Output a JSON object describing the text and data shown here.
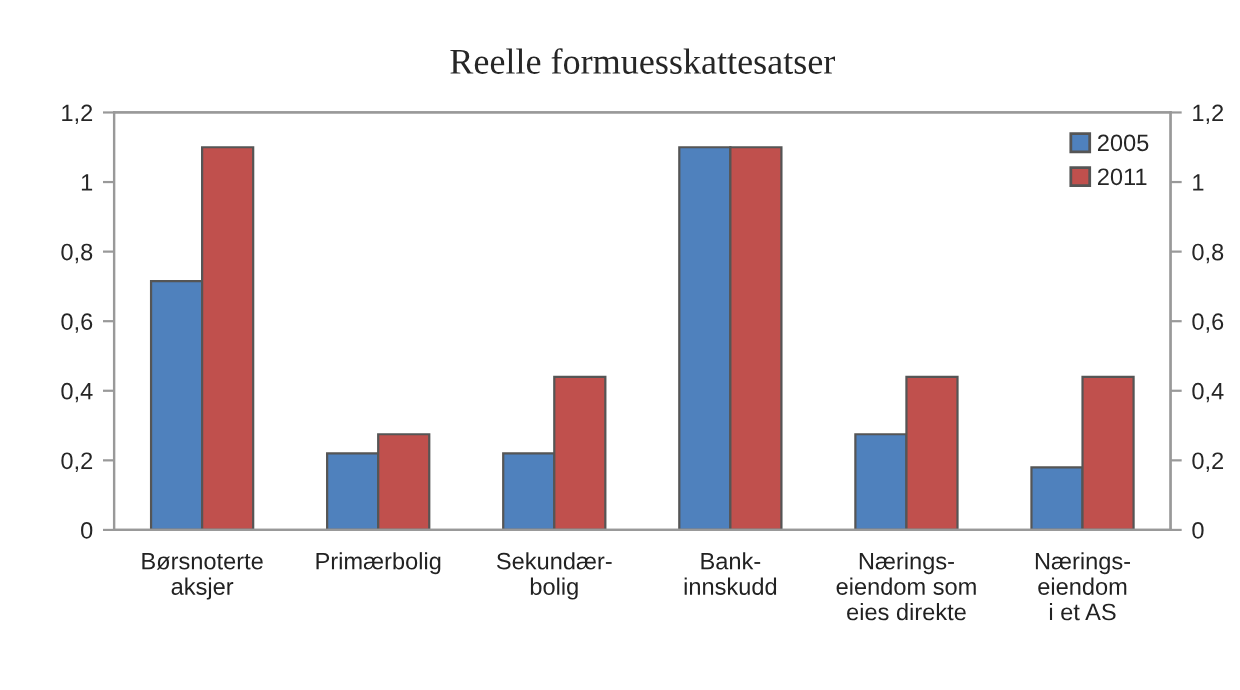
{
  "chart_data": {
    "type": "bar",
    "title": "Reelle formuesskattesatser",
    "categories": [
      "Børsnoterte\naksjer",
      "Primærbolig",
      "Sekundær-\nbolig",
      "Bank-\ninnskudd",
      "Nærings-\neiendom som\neies direkte",
      "Nærings-\neiendom\ni et AS"
    ],
    "series": [
      {
        "name": "2005",
        "color": "#4f81bd",
        "values": [
          0.715,
          0.22,
          0.22,
          1.1,
          0.275,
          0.18
        ]
      },
      {
        "name": "2011",
        "color": "#c0504d",
        "values": [
          1.1,
          0.275,
          0.44,
          1.1,
          0.44,
          0.44
        ]
      }
    ],
    "ylim": [
      0,
      1.2
    ],
    "yticks": [
      0,
      {
        "value": 0.2,
        "label": "0,2"
      },
      {
        "value": 0.4,
        "label": "0,4"
      },
      {
        "value": 0.6,
        "label": "0,6"
      },
      {
        "value": 0.8,
        "label": "0,8"
      },
      1,
      {
        "value": 1.2,
        "label": "1,2"
      }
    ],
    "y2lim": [
      0,
      1.2
    ],
    "y2ticks": [
      0,
      {
        "value": 0.2,
        "label": "0,2"
      },
      {
        "value": 0.4,
        "label": "0,4"
      },
      {
        "value": 0.6,
        "label": "0,6"
      },
      {
        "value": 0.8,
        "label": "0,8"
      },
      1,
      {
        "value": 1.2,
        "label": "1,2"
      }
    ],
    "grid": false,
    "legend": "top right"
  }
}
